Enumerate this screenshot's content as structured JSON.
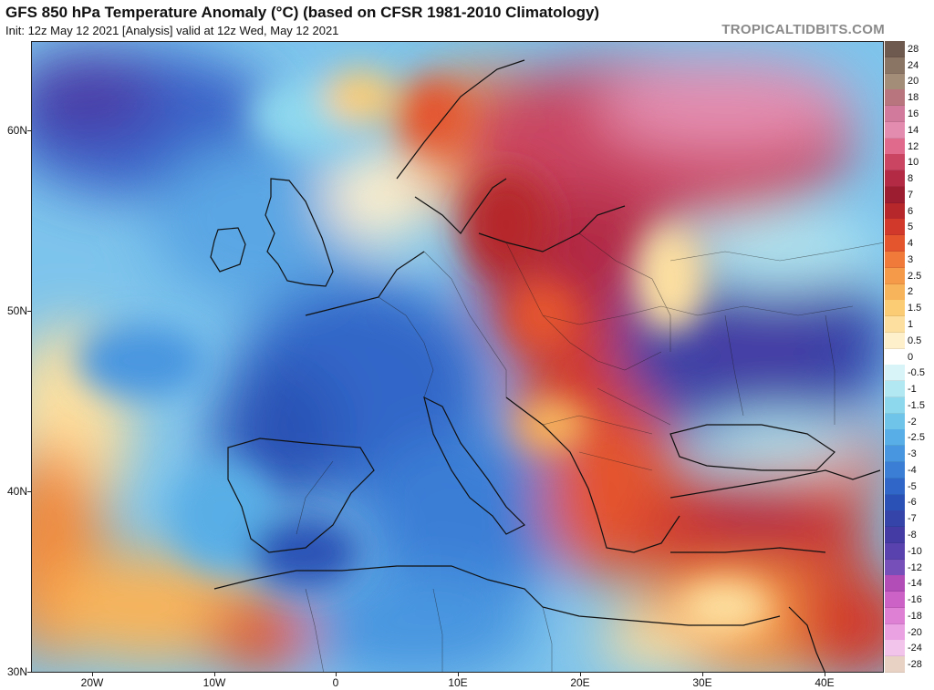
{
  "header": {
    "title": "GFS 850 hPa Temperature Anomaly (°C) (based on CFSR 1981-2010 Climatology)",
    "subtitle": "Init: 12z May 12 2021   [Analysis]   valid at 12z Wed, May 12 2021",
    "brand": "TROPICALTIDBITS.COM"
  },
  "axes": {
    "lat_labels": [
      "60N",
      "50N",
      "40N",
      "30N"
    ],
    "lon_labels": [
      "20W",
      "10W",
      "0",
      "10E",
      "20E",
      "30E",
      "40E"
    ]
  },
  "colorbar": {
    "levels": [
      {
        "label": "28",
        "color": "#6e5a4e"
      },
      {
        "label": "24",
        "color": "#8a7464"
      },
      {
        "label": "20",
        "color": "#a38c78"
      },
      {
        "label": "18",
        "color": "#b8757e"
      },
      {
        "label": "16",
        "color": "#d27a9c"
      },
      {
        "label": "14",
        "color": "#e48caf"
      },
      {
        "label": "12",
        "color": "#e06a8c"
      },
      {
        "label": "10",
        "color": "#c94562"
      },
      {
        "label": "8",
        "color": "#b22a44"
      },
      {
        "label": "7",
        "color": "#9c1d30"
      },
      {
        "label": "6",
        "color": "#b5272a"
      },
      {
        "label": "5",
        "color": "#d13a2a"
      },
      {
        "label": "4",
        "color": "#e4552e"
      },
      {
        "label": "3",
        "color": "#ef7a3a"
      },
      {
        "label": "2.5",
        "color": "#f59a48"
      },
      {
        "label": "2",
        "color": "#f8b45a"
      },
      {
        "label": "1.5",
        "color": "#fbcc74"
      },
      {
        "label": "1",
        "color": "#fde0a0"
      },
      {
        "label": "0.5",
        "color": "#fff0cc"
      },
      {
        "label": "0",
        "color": "#ffffff"
      },
      {
        "label": "-0.5",
        "color": "#d8f4f8"
      },
      {
        "label": "-1",
        "color": "#b2e8f2"
      },
      {
        "label": "-1.5",
        "color": "#8ed8ee"
      },
      {
        "label": "-2",
        "color": "#6fc4ea"
      },
      {
        "label": "-2.5",
        "color": "#58aee6"
      },
      {
        "label": "-3",
        "color": "#4896e0"
      },
      {
        "label": "-4",
        "color": "#3a7ed6"
      },
      {
        "label": "-5",
        "color": "#3066c8"
      },
      {
        "label": "-6",
        "color": "#2a52b6"
      },
      {
        "label": "-7",
        "color": "#3444a8"
      },
      {
        "label": "-8",
        "color": "#443ca4"
      },
      {
        "label": "-10",
        "color": "#5a42ae"
      },
      {
        "label": "-12",
        "color": "#7650b8"
      },
      {
        "label": "-14",
        "color": "#b24cb6"
      },
      {
        "label": "-16",
        "color": "#cc62c6"
      },
      {
        "label": "-18",
        "color": "#de80d4"
      },
      {
        "label": "-20",
        "color": "#eaa2e2"
      },
      {
        "label": "-24",
        "color": "#f2c4ec"
      },
      {
        "label": "-28",
        "color": "#e8d2c4"
      }
    ]
  },
  "map_colors": {
    "ocean_base": "#7dc4ec",
    "deep_blue": "#3a62c8",
    "purple": "#4a3ea8",
    "red": "#d43a2c",
    "dark_red": "#a4222c",
    "pink": "#e06a8c",
    "orange": "#f08a3c",
    "coast": "#111111"
  }
}
